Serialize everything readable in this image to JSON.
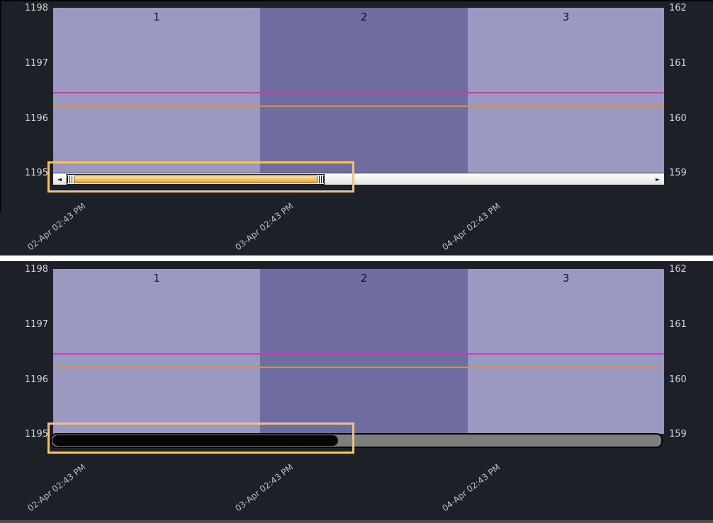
{
  "colors": {
    "background": "#1d2026",
    "band_light": "#9b99c2",
    "band_dark": "#6f6da0",
    "line_magenta": "#c443b2",
    "line_orange": "#cf953e",
    "highlight_box": "#f0c469",
    "axis_text": "#d0d2d6",
    "separator": "#ffffff"
  },
  "panels": [
    {
      "name": "top-chart",
      "left_axis_ticks": [
        "1198",
        "1197",
        "1196",
        "1195"
      ],
      "right_axis_ticks": [
        "162",
        "161",
        "160",
        "159"
      ],
      "band_labels": [
        "1",
        "2",
        "3"
      ],
      "x_axis_labels": [
        "02-Apr 02:43 PM",
        "03-Apr 02:43 PM",
        "04-Apr 02:43 PM"
      ],
      "scrollbar": {
        "style": "classic-light",
        "left_arrow_glyph": "◄",
        "right_arrow_glyph": "►"
      }
    },
    {
      "name": "bottom-chart",
      "left_axis_ticks": [
        "1198",
        "1197",
        "1196",
        "1195"
      ],
      "right_axis_ticks": [
        "162",
        "161",
        "160",
        "159"
      ],
      "band_labels": [
        "1",
        "2",
        "3"
      ],
      "x_axis_labels": [
        "02-Apr 02:43 PM",
        "03-Apr 02:43 PM",
        "04-Apr 02:43 PM"
      ],
      "scrollbar": {
        "style": "dark-pill"
      }
    }
  ],
  "chart_data": [
    {
      "type": "line",
      "title": "",
      "x_tick_labels": [
        "02-Apr 02:43 PM",
        "03-Apr 02:43 PM",
        "04-Apr 02:43 PM"
      ],
      "left_axis": {
        "ticks": [
          1198,
          1197,
          1196,
          1195
        ],
        "range": [
          1195,
          1198
        ]
      },
      "right_axis": {
        "ticks": [
          162,
          161,
          160,
          159
        ],
        "range": [
          159,
          162
        ]
      },
      "background_bands": [
        {
          "label": "1",
          "shade": "light"
        },
        {
          "label": "2",
          "shade": "dark"
        },
        {
          "label": "3",
          "shade": "light"
        }
      ],
      "series": [
        {
          "name": "upper-horizontal-line",
          "color": "#c443b2",
          "shape": "horizontal-line",
          "left_value": 1196.45,
          "right_value": 160.45
        },
        {
          "name": "lower-horizontal-line",
          "color": "#cf953e",
          "shape": "horizontal-line",
          "left_value": 1196.2,
          "right_value": 160.2
        }
      ],
      "grid": false,
      "legend": null,
      "annotation": "orange box highlighting classic light horizontal scrollbar with arrows and orange-filled thumb"
    },
    {
      "type": "line",
      "title": "",
      "x_tick_labels": [
        "02-Apr 02:43 PM",
        "03-Apr 02:43 PM",
        "04-Apr 02:43 PM"
      ],
      "left_axis": {
        "ticks": [
          1198,
          1197,
          1196,
          1195
        ],
        "range": [
          1195,
          1198
        ]
      },
      "right_axis": {
        "ticks": [
          162,
          161,
          160,
          159
        ],
        "range": [
          159,
          162
        ]
      },
      "background_bands": [
        {
          "label": "1",
          "shade": "light"
        },
        {
          "label": "2",
          "shade": "dark"
        },
        {
          "label": "3",
          "shade": "light"
        }
      ],
      "series": [
        {
          "name": "upper-horizontal-line",
          "color": "#c443b2",
          "shape": "horizontal-line",
          "left_value": 1196.45,
          "right_value": 160.45
        },
        {
          "name": "lower-horizontal-line",
          "color": "#cf953e",
          "shape": "horizontal-line",
          "left_value": 1196.2,
          "right_value": 160.2
        }
      ],
      "grid": false,
      "legend": null,
      "annotation": "orange box highlighting dark rounded horizontal scrollbar with black pill thumb"
    }
  ]
}
